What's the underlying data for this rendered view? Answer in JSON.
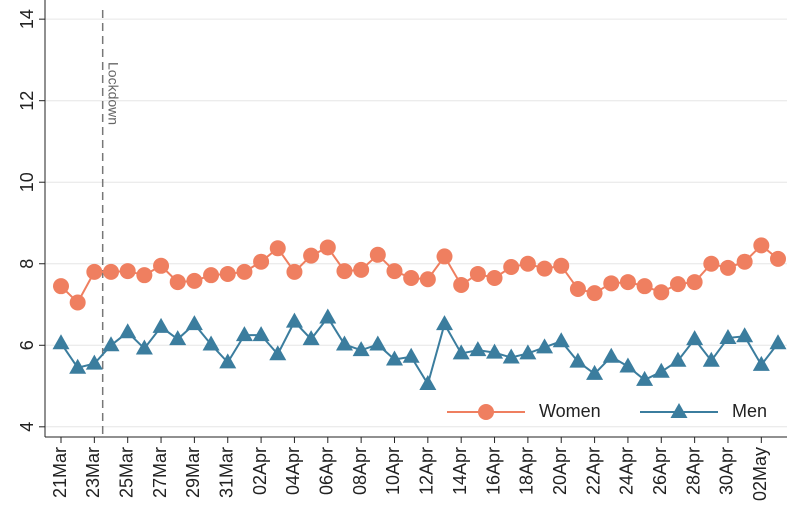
{
  "chart_data": {
    "type": "line",
    "categories": [
      "21Mar",
      null,
      "23Mar",
      null,
      "25Mar",
      null,
      "27Mar",
      null,
      "29Mar",
      null,
      "31Mar",
      null,
      "02Apr",
      null,
      "04Apr",
      null,
      "06Apr",
      null,
      "08Apr",
      null,
      "10Apr",
      null,
      "12Apr",
      null,
      "14Apr",
      null,
      "16Apr",
      null,
      "18Apr",
      null,
      "20Apr",
      null,
      "22Apr",
      null,
      "24Apr",
      null,
      "26Apr",
      null,
      "28Apr",
      null,
      "30Apr",
      null,
      "02May",
      null
    ],
    "series": [
      {
        "name": "Women",
        "color": "#ef7f60",
        "marker": "circle",
        "values": [
          7.45,
          7.05,
          7.8,
          7.8,
          7.82,
          7.72,
          7.95,
          7.55,
          7.58,
          7.72,
          7.75,
          7.8,
          8.05,
          8.38,
          7.8,
          8.2,
          8.4,
          7.82,
          7.85,
          8.22,
          7.82,
          7.65,
          7.62,
          8.18,
          7.48,
          7.75,
          7.65,
          7.92,
          8.0,
          7.88,
          7.95,
          7.38,
          7.28,
          7.52,
          7.55,
          7.45,
          7.3,
          7.5,
          7.55,
          8.0,
          7.9,
          8.05,
          8.45,
          8.12
        ]
      },
      {
        "name": "Men",
        "color": "#3b7d9e",
        "marker": "triangle",
        "values": [
          6.05,
          5.45,
          5.55,
          6.0,
          6.32,
          5.92,
          6.45,
          6.15,
          6.52,
          6.02,
          5.58,
          6.25,
          6.25,
          5.78,
          6.58,
          6.15,
          6.68,
          6.02,
          5.88,
          6.02,
          5.65,
          5.72,
          5.05,
          6.52,
          5.8,
          5.88,
          5.82,
          5.7,
          5.8,
          5.95,
          6.1,
          5.6,
          5.3,
          5.72,
          5.48,
          5.15,
          5.35,
          5.62,
          6.15,
          5.62,
          6.18,
          6.22,
          5.52,
          6.05
        ]
      }
    ],
    "ylim": [
      3.75,
      14.47
    ],
    "yticks": [
      4,
      6,
      8,
      10,
      12,
      14
    ],
    "grid": true,
    "legend": "bottom-right",
    "annotation": {
      "text": "Lockdown",
      "category": "23Mar"
    }
  }
}
